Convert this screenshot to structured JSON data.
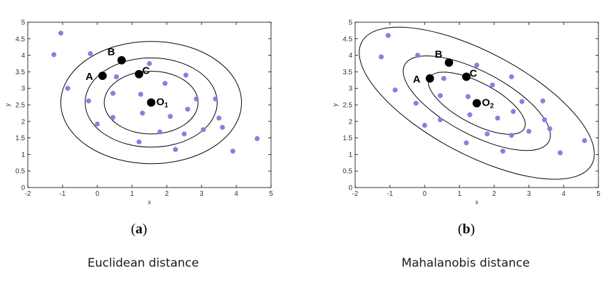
{
  "colors": {
    "scatter": "#8a7fe0",
    "marked": "#000000",
    "contour": "#000000",
    "frame": "#000000"
  },
  "chart_data": [
    {
      "type": "scatter",
      "panel_label_open": "(",
      "panel_label_letter": "a",
      "panel_label_close": ")",
      "caption": "Euclidean distance",
      "xlabel": "x",
      "ylabel": "y",
      "xlim": [
        -2,
        5
      ],
      "ylim": [
        0,
        5
      ],
      "xticks": [
        -2,
        -1,
        0,
        1,
        2,
        3,
        4,
        5
      ],
      "yticks": [
        0,
        0.5,
        1,
        1.5,
        2,
        2.5,
        3,
        3.5,
        4,
        4.5,
        5
      ],
      "grid": false,
      "points": [
        {
          "x": -1.25,
          "y": 4.02
        },
        {
          "x": -1.05,
          "y": 4.67
        },
        {
          "x": -0.85,
          "y": 3.0
        },
        {
          "x": -0.2,
          "y": 4.05
        },
        {
          "x": -0.25,
          "y": 2.62
        },
        {
          "x": 0.0,
          "y": 1.92
        },
        {
          "x": 0.45,
          "y": 2.85
        },
        {
          "x": 0.45,
          "y": 2.12
        },
        {
          "x": 0.55,
          "y": 3.35
        },
        {
          "x": 1.25,
          "y": 2.82
        },
        {
          "x": 1.3,
          "y": 2.25
        },
        {
          "x": 1.5,
          "y": 3.75
        },
        {
          "x": 1.2,
          "y": 1.38
        },
        {
          "x": 1.8,
          "y": 1.68
        },
        {
          "x": 1.95,
          "y": 3.15
        },
        {
          "x": 2.1,
          "y": 2.15
        },
        {
          "x": 2.25,
          "y": 1.15
        },
        {
          "x": 2.55,
          "y": 3.4
        },
        {
          "x": 2.6,
          "y": 2.37
        },
        {
          "x": 2.5,
          "y": 1.62
        },
        {
          "x": 2.85,
          "y": 2.68
        },
        {
          "x": 3.05,
          "y": 1.75
        },
        {
          "x": 3.4,
          "y": 2.68
        },
        {
          "x": 3.5,
          "y": 2.1
        },
        {
          "x": 3.6,
          "y": 1.82
        },
        {
          "x": 3.9,
          "y": 1.1
        },
        {
          "x": 4.6,
          "y": 1.48
        }
      ],
      "marked_points": [
        {
          "label": "A",
          "x": 0.15,
          "y": 3.38
        },
        {
          "label": "B",
          "x": 0.7,
          "y": 3.85
        },
        {
          "label": "C",
          "x": 1.2,
          "y": 3.43
        },
        {
          "label": "O",
          "subscript": "1",
          "x": 1.55,
          "y": 2.57
        }
      ],
      "contours": [
        {
          "cx": 1.55,
          "cy": 2.57,
          "rx": 1.35,
          "ry": 0.95,
          "angle": 0
        },
        {
          "cx": 1.55,
          "cy": 2.57,
          "rx": 1.9,
          "ry": 1.35,
          "angle": 0
        },
        {
          "cx": 1.55,
          "cy": 2.57,
          "rx": 2.6,
          "ry": 1.85,
          "angle": 0
        }
      ]
    },
    {
      "type": "scatter",
      "panel_label_open": "(",
      "panel_label_letter": "b",
      "panel_label_close": ")",
      "caption": "Mahalanobis  distance",
      "xlabel": "x",
      "ylabel": "y",
      "xlim": [
        -2,
        5
      ],
      "ylim": [
        0,
        5
      ],
      "xticks": [
        -2,
        -1,
        0,
        1,
        2,
        3,
        4,
        5
      ],
      "yticks": [
        0,
        0.5,
        1,
        1.5,
        2,
        2.5,
        3,
        3.5,
        4,
        4.5,
        5
      ],
      "grid": false,
      "points": [
        {
          "x": -1.25,
          "y": 3.95
        },
        {
          "x": -1.05,
          "y": 4.6
        },
        {
          "x": -0.85,
          "y": 2.95
        },
        {
          "x": -0.2,
          "y": 4.0
        },
        {
          "x": -0.25,
          "y": 2.55
        },
        {
          "x": 0.0,
          "y": 1.88
        },
        {
          "x": 0.45,
          "y": 2.78
        },
        {
          "x": 0.45,
          "y": 2.05
        },
        {
          "x": 0.55,
          "y": 3.3
        },
        {
          "x": 1.25,
          "y": 2.75
        },
        {
          "x": 1.3,
          "y": 2.2
        },
        {
          "x": 1.5,
          "y": 3.7
        },
        {
          "x": 1.2,
          "y": 1.35
        },
        {
          "x": 1.8,
          "y": 1.62
        },
        {
          "x": 1.95,
          "y": 3.1
        },
        {
          "x": 2.1,
          "y": 2.1
        },
        {
          "x": 2.25,
          "y": 1.1
        },
        {
          "x": 2.5,
          "y": 3.35
        },
        {
          "x": 2.55,
          "y": 2.3
        },
        {
          "x": 2.5,
          "y": 1.58
        },
        {
          "x": 2.8,
          "y": 2.6
        },
        {
          "x": 3.0,
          "y": 1.7
        },
        {
          "x": 3.4,
          "y": 2.62
        },
        {
          "x": 3.45,
          "y": 2.05
        },
        {
          "x": 3.6,
          "y": 1.78
        },
        {
          "x": 3.9,
          "y": 1.05
        },
        {
          "x": 4.6,
          "y": 1.42
        }
      ],
      "marked_points": [
        {
          "label": "A",
          "x": 0.15,
          "y": 3.3
        },
        {
          "label": "B",
          "x": 0.7,
          "y": 3.78
        },
        {
          "label": "C",
          "x": 1.2,
          "y": 3.35
        },
        {
          "label": "O",
          "subscript": "2",
          "x": 1.5,
          "y": 2.55
        }
      ],
      "contours": [
        {
          "cx": 1.5,
          "cy": 2.55,
          "rx": 1.55,
          "ry": 0.62,
          "angle": 28
        },
        {
          "cx": 1.5,
          "cy": 2.55,
          "rx": 2.35,
          "ry": 0.95,
          "angle": 28
        },
        {
          "cx": 1.5,
          "cy": 2.55,
          "rx": 3.75,
          "ry": 1.55,
          "angle": 28
        }
      ]
    }
  ]
}
